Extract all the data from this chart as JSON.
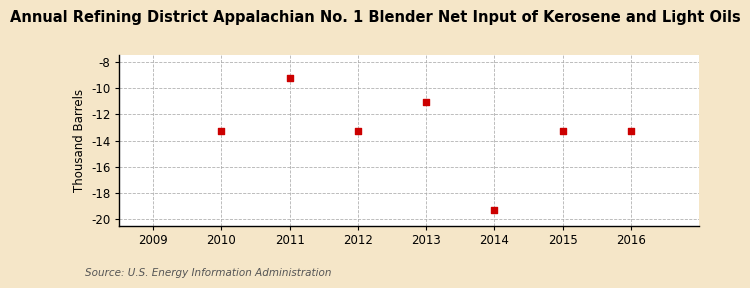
{
  "title": "Annual Refining District Appalachian No. 1 Blender Net Input of Kerosene and Light Oils",
  "ylabel": "Thousand Barrels",
  "source": "Source: U.S. Energy Information Administration",
  "fig_background_color": "#f5e6c8",
  "plot_background_color": "#ffffff",
  "years": [
    2009,
    2010,
    2011,
    2012,
    2013,
    2014,
    2015,
    2016
  ],
  "values": [
    null,
    -13.3,
    -9.2,
    -13.3,
    -11.1,
    -19.3,
    -13.3,
    -13.3
  ],
  "xlim": [
    2008.5,
    2017.0
  ],
  "ylim": [
    -20.5,
    -7.5
  ],
  "yticks": [
    -8,
    -10,
    -12,
    -14,
    -16,
    -18,
    -20
  ],
  "xticks": [
    2009,
    2010,
    2011,
    2012,
    2013,
    2014,
    2015,
    2016
  ],
  "marker_color": "#cc0000",
  "marker_size": 18,
  "grid_color": "#aaaaaa",
  "title_fontsize": 10.5,
  "label_fontsize": 8.5,
  "tick_fontsize": 8.5,
  "source_fontsize": 7.5
}
